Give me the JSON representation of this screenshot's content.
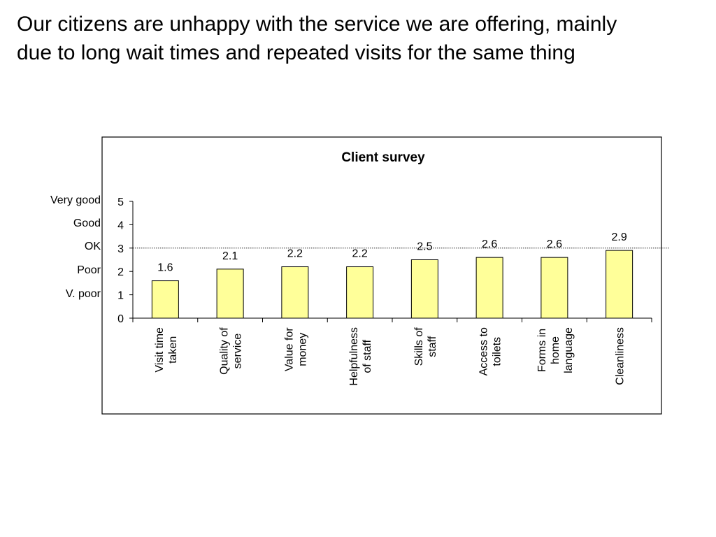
{
  "slide": {
    "headline_lines": [
      "Our citizens are unhappy with the service we are offering, mainly",
      "due to long wait times and repeated visits for the same thing"
    ],
    "rating_labels": [
      "Very good",
      "Good",
      "OK",
      "Poor",
      "V. poor"
    ]
  },
  "chart_data": {
    "type": "bar",
    "title": "Client survey",
    "xlabel": "",
    "ylabel": "",
    "categories": [
      [
        "Visit time",
        "taken"
      ],
      [
        "Quality of",
        "service"
      ],
      [
        "Value for",
        "money"
      ],
      [
        "Helpfulness",
        "of staff"
      ],
      [
        "Skills of",
        "staff"
      ],
      [
        "Access to",
        "toilets"
      ],
      [
        "Forms in",
        "home",
        "language"
      ],
      [
        "Cleanliness"
      ]
    ],
    "values": [
      1.6,
      2.1,
      2.2,
      2.2,
      2.5,
      2.6,
      2.6,
      2.9
    ],
    "data_labels": [
      "1.6",
      "2.1",
      "2.2",
      "2.2",
      "2.5",
      "2.6",
      "2.6",
      "2.9"
    ],
    "ylim": [
      0,
      5
    ],
    "yticks": [
      0,
      1,
      2,
      3,
      4,
      5
    ],
    "reference_line": 3,
    "grid": false,
    "legend": "none",
    "colors": {
      "bar_fill": "#FFFF99",
      "bar_stroke": "#000000",
      "reference_line": "#000000",
      "frame": "#000000"
    }
  }
}
